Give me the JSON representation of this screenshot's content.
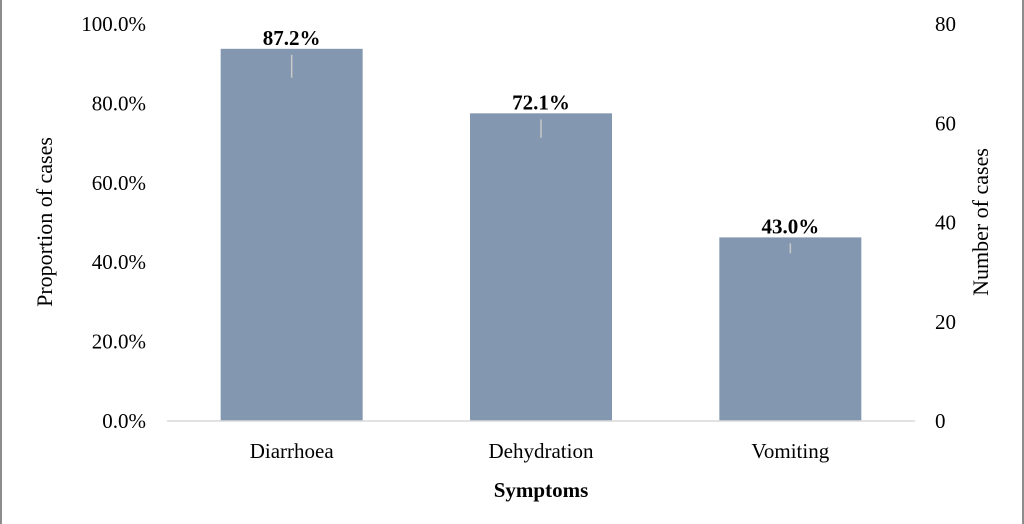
{
  "chart_data": {
    "type": "bar",
    "title": "",
    "categories": [
      "Diarrhoea",
      "Dehydration",
      "Vomiting"
    ],
    "series": [
      {
        "values": [
          87.2,
          72.1,
          43.0
        ],
        "data_labels": [
          "87.2%",
          "72.1%",
          "43.0%"
        ]
      }
    ],
    "count_values": [
      75,
      62,
      37
    ],
    "xlabel": "Symptoms",
    "ylabel": "Proportion of cases",
    "y2label": "Number of cases",
    "ylim": [
      0,
      100
    ],
    "y2lim": [
      0,
      80
    ],
    "yticks": [
      "0.0%",
      "20.0%",
      "40.0%",
      "60.0%",
      "80.0%",
      "100.0%"
    ],
    "y2ticks": [
      "0",
      "20",
      "40",
      "60",
      "80"
    ],
    "bar_color": "#8497b0",
    "errorbar_color": "#c9c9c9",
    "grid": false,
    "legend": "none"
  }
}
